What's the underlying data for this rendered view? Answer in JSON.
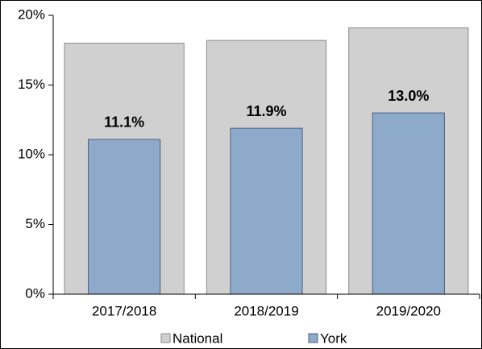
{
  "chart_data": {
    "type": "bar",
    "categories": [
      "2017/2018",
      "2018/2019",
      "2019/2020"
    ],
    "series": [
      {
        "name": "National",
        "color": "#d0d0d0",
        "values": [
          18.0,
          18.2,
          19.1
        ]
      },
      {
        "name": "York",
        "color": "#8eaacb",
        "values": [
          11.1,
          11.9,
          13.0
        ],
        "value_labels": [
          "11.1%",
          "11.9%",
          "13.0%"
        ]
      }
    ],
    "ylim": [
      0,
      20
    ],
    "yticks": [
      {
        "value": 0,
        "label": "0%"
      },
      {
        "value": 5,
        "label": "5%"
      },
      {
        "value": 10,
        "label": "10%"
      },
      {
        "value": 15,
        "label": "15%"
      },
      {
        "value": 20,
        "label": "20%"
      }
    ],
    "overlap": true,
    "legend": "bottom"
  }
}
